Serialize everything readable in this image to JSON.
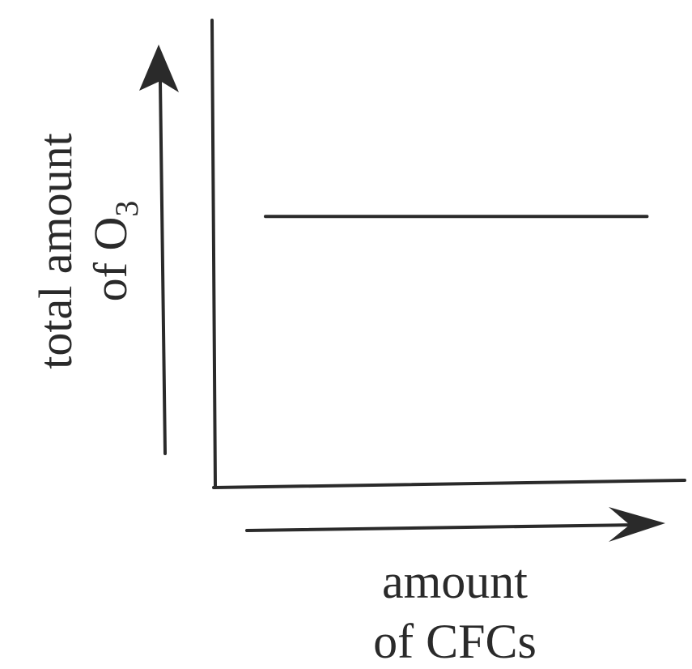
{
  "chart_data": {
    "type": "line",
    "title": "",
    "xlabel_line1": "amount",
    "xlabel_line2": "of CFCs",
    "ylabel_line1": "total amount",
    "ylabel_line2_prefix": "of O",
    "ylabel_line2_subscript": "3",
    "x_ticks": [],
    "y_ticks": [],
    "grid": false,
    "legend": "none",
    "xlim": [
      0,
      1
    ],
    "ylim": [
      0,
      1
    ],
    "series": [
      {
        "x": [
          0.11,
          0.92
        ],
        "y": [
          0.58,
          0.58
        ]
      }
    ],
    "colors": {
      "ink": "#2a2a2a"
    }
  }
}
